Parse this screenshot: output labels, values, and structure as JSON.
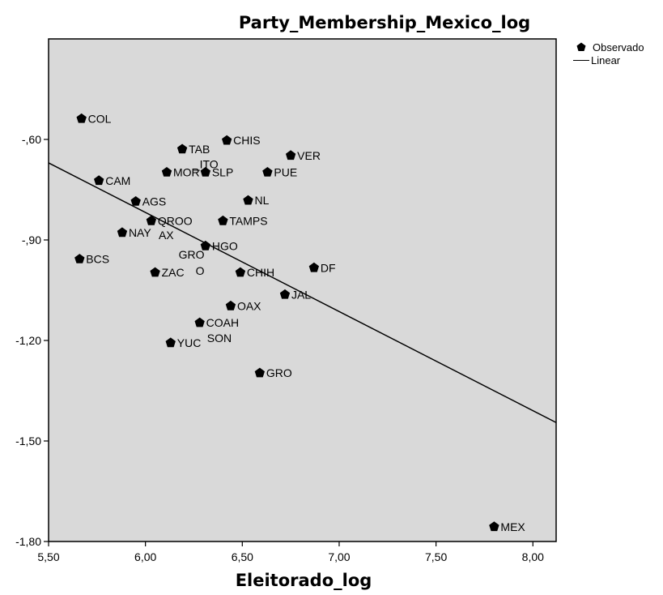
{
  "chart_data": {
    "type": "scatter",
    "title": "Party_Membership_Mexico_log",
    "xlabel": "Eleitorado_log",
    "ylabel": "",
    "xlim": [
      5.5,
      8.12
    ],
    "ylim": [
      -1.8,
      -0.3
    ],
    "x_ticks": [
      5.5,
      6.0,
      6.5,
      7.0,
      7.5,
      8.0
    ],
    "x_tick_labels": [
      "5,50",
      "6,00",
      "6,50",
      "7,00",
      "7,50",
      "8,00"
    ],
    "y_ticks": [
      -0.6,
      -0.9,
      -1.2,
      -1.5,
      -1.8
    ],
    "y_tick_labels": [
      "-,60",
      "-,90",
      "-1,20",
      "-1,50",
      "-1,80"
    ],
    "grid": false,
    "plot_background": "#d9d9d9",
    "legend": {
      "position": "top-right",
      "entries": [
        {
          "label": "Observado",
          "kind": "marker"
        },
        {
          "label": "Linear",
          "kind": "line"
        }
      ]
    },
    "fit_line": {
      "x": [
        5.5,
        8.12
      ],
      "y": [
        -0.67,
        -1.445
      ]
    },
    "series": [
      {
        "name": "Observado",
        "marker": "pentagon",
        "color": "#000000",
        "points": [
          {
            "x": 5.67,
            "y": -0.538,
            "label": "COL"
          },
          {
            "x": 6.42,
            "y": -0.603,
            "label": "CHIS"
          },
          {
            "x": 6.19,
            "y": -0.629,
            "label": "TAB"
          },
          {
            "x": 6.75,
            "y": -0.648,
            "label": "VER"
          },
          {
            "x": 6.11,
            "y": -0.698,
            "label": "MOR"
          },
          {
            "x": 6.31,
            "y": -0.698,
            "label": "SLP"
          },
          {
            "x": 6.63,
            "y": -0.698,
            "label": "PUE"
          },
          {
            "x": 5.76,
            "y": -0.723,
            "label": "CAM"
          },
          {
            "x": 5.95,
            "y": -0.785,
            "label": "AGS"
          },
          {
            "x": 6.53,
            "y": -0.782,
            "label": "NL"
          },
          {
            "x": 6.03,
            "y": -0.843,
            "label": "QROO"
          },
          {
            "x": 6.4,
            "y": -0.843,
            "label": "TAMPS"
          },
          {
            "x": 5.88,
            "y": -0.878,
            "label": "NAY"
          },
          {
            "x": 6.31,
            "y": -0.918,
            "label": "HGO"
          },
          {
            "x": 5.66,
            "y": -0.957,
            "label": "BCS"
          },
          {
            "x": 6.87,
            "y": -0.983,
            "label": "DF"
          },
          {
            "x": 6.05,
            "y": -0.997,
            "label": "ZAC"
          },
          {
            "x": 6.49,
            "y": -0.997,
            "label": "CHIH"
          },
          {
            "x": 6.72,
            "y": -1.063,
            "label": "JAL"
          },
          {
            "x": 6.44,
            "y": -1.097,
            "label": "OAX"
          },
          {
            "x": 6.28,
            "y": -1.147,
            "label": "COAH"
          },
          {
            "x": 6.13,
            "y": -1.207,
            "label": "YUC"
          },
          {
            "x": 6.59,
            "y": -1.297,
            "label": "GRO"
          },
          {
            "x": 7.8,
            "y": -1.756,
            "label": "MEX"
          }
        ]
      }
    ],
    "partial_labels": [
      {
        "text": "_ITO",
        "near": "SLP"
      },
      {
        "text": "AX",
        "near": "NAY"
      },
      {
        "text": "GRO",
        "near": "ZAC"
      },
      {
        "text": "O",
        "near": "ZAC"
      },
      {
        "text": "SON",
        "near": "YUC"
      }
    ]
  }
}
